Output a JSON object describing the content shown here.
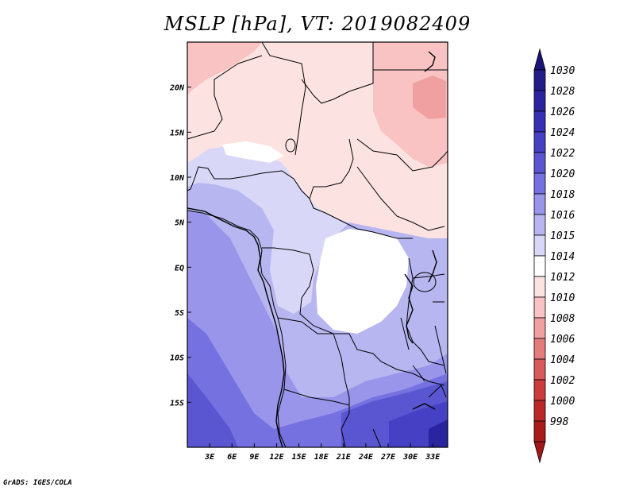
{
  "title": "MSLP [hPa], VT: 2019082409",
  "credit": "GrADS: IGES/COLA",
  "map": {
    "variable": "MSLP",
    "units": "hPa",
    "valid_time": "2019082409",
    "lon_range": [
      0,
      35
    ],
    "lat_range": [
      -20,
      25
    ],
    "lon_ticks": [
      {
        "value": 3,
        "label": "3E"
      },
      {
        "value": 6,
        "label": "6E"
      },
      {
        "value": 9,
        "label": "9E"
      },
      {
        "value": 12,
        "label": "12E"
      },
      {
        "value": 15,
        "label": "15E"
      },
      {
        "value": 18,
        "label": "18E"
      },
      {
        "value": 21,
        "label": "21E"
      },
      {
        "value": 24,
        "label": "24E"
      },
      {
        "value": 27,
        "label": "27E"
      },
      {
        "value": 30,
        "label": "30E"
      },
      {
        "value": 33,
        "label": "33E"
      }
    ],
    "lat_ticks": [
      {
        "value": 20,
        "label": "20N"
      },
      {
        "value": 15,
        "label": "15N"
      },
      {
        "value": 10,
        "label": "10N"
      },
      {
        "value": 5,
        "label": "5N"
      },
      {
        "value": 0,
        "label": "EQ"
      },
      {
        "value": -5,
        "label": "5S"
      },
      {
        "value": -10,
        "label": "10S"
      },
      {
        "value": -15,
        "label": "15S"
      }
    ]
  },
  "colorbar": {
    "levels": [
      {
        "label": "1030",
        "color": "#231d8a"
      },
      {
        "label": "1028",
        "color": "#2a24a0"
      },
      {
        "label": "1026",
        "color": "#3530b4"
      },
      {
        "label": "1024",
        "color": "#4640c4"
      },
      {
        "label": "1022",
        "color": "#5a56d2"
      },
      {
        "label": "1020",
        "color": "#7571e0"
      },
      {
        "label": "1018",
        "color": "#9895ea"
      },
      {
        "label": "1016",
        "color": "#b8b6f0"
      },
      {
        "label": "1015",
        "color": "#d8d7f7"
      },
      {
        "label": "1014",
        "color": "#ffffff"
      },
      {
        "label": "1012",
        "color": "#fde2e2"
      },
      {
        "label": "1010",
        "color": "#f9c3c3"
      },
      {
        "label": "1008",
        "color": "#f0a0a0"
      },
      {
        "label": "1006",
        "color": "#e47c7c"
      },
      {
        "label": "1004",
        "color": "#d85a5a"
      },
      {
        "label": "1002",
        "color": "#cc3c3c"
      },
      {
        "label": "1000",
        "color": "#bc2828"
      },
      {
        "label": "998",
        "color": "#a81c1c"
      }
    ],
    "top_cap_color": "#1a1478",
    "bottom_cap_color": "#a01818"
  }
}
